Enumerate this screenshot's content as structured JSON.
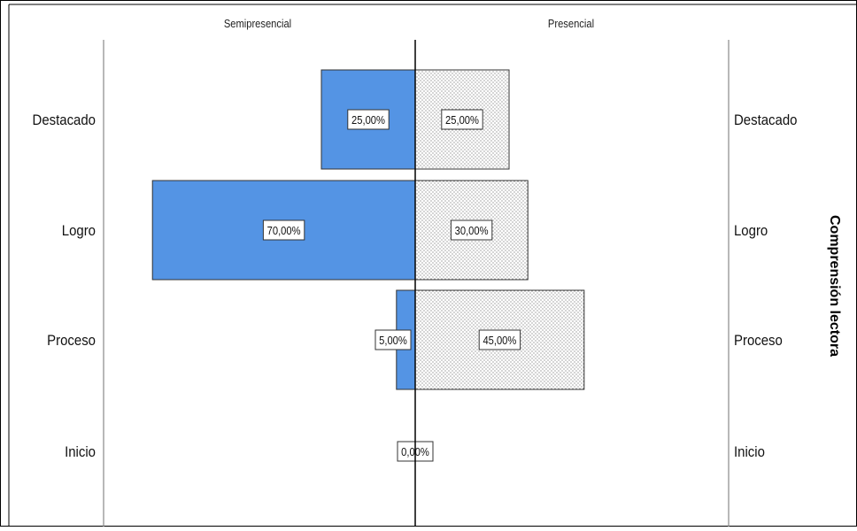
{
  "chart_data": {
    "type": "bar",
    "orientation": "horizontal",
    "layout": "population-pyramid",
    "categories": [
      "Destacado",
      "Logro",
      "Proceso",
      "Inicio"
    ],
    "series": [
      {
        "name": "Semipresencial",
        "values": [
          25,
          70,
          5,
          0
        ],
        "labels": [
          "25,00%",
          "70,00%",
          "5,00%",
          "0,00%"
        ],
        "color": "#5494e4",
        "side": "left"
      },
      {
        "name": "Presencial",
        "values": [
          25,
          30,
          45,
          0
        ],
        "labels": [
          "25,00%",
          "30,00%",
          "45,00%",
          ""
        ],
        "color": "#ffffff",
        "pattern": "dots",
        "side": "right"
      }
    ],
    "xlim": [
      0,
      85
    ],
    "y_axis_title": "Comprensión lectora",
    "legend": "none",
    "grid": false
  },
  "colors": {
    "semipresencial": "#5494e4",
    "presencial_fill": "#ffffff",
    "axis": "#000000",
    "panel_line": "#888888"
  }
}
